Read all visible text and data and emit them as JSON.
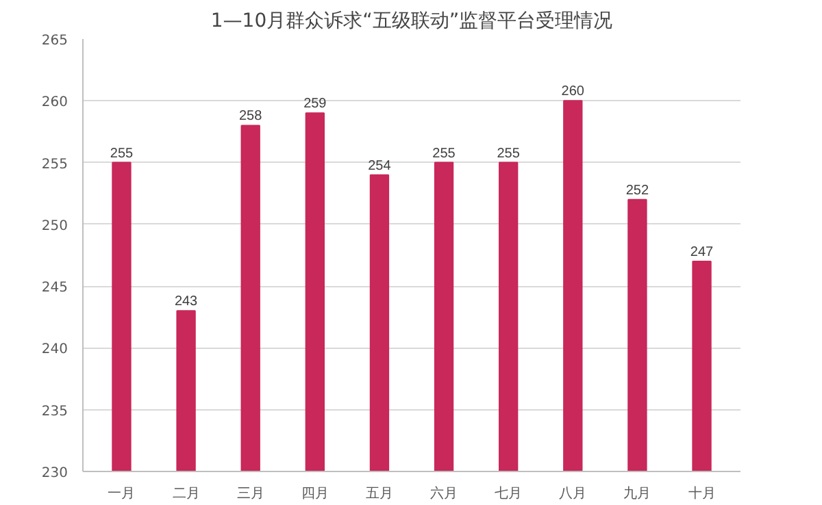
{
  "chart_data": {
    "type": "bar",
    "title": "1—10月群众诉求“五级联动”监督平台受理情况",
    "categories": [
      "一月",
      "二月",
      "三月",
      "四月",
      "五月",
      "六月",
      "七月",
      "八月",
      "九月",
      "十月"
    ],
    "values": [
      255,
      243,
      258,
      259,
      254,
      255,
      255,
      260,
      252,
      247
    ],
    "color": "#c8285a",
    "ylim": [
      230,
      265
    ],
    "yticks": [
      230,
      235,
      240,
      245,
      250,
      255,
      260,
      265
    ],
    "grid": "y",
    "data_labels": true
  }
}
